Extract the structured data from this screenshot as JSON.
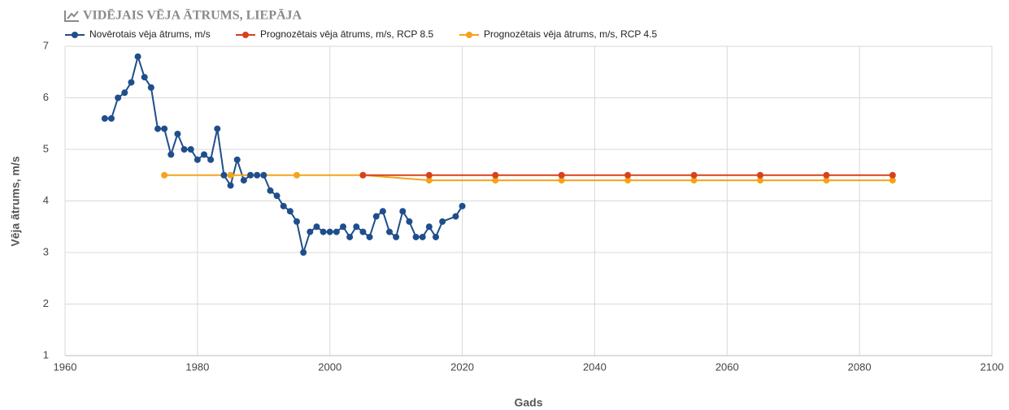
{
  "chart_data": {
    "type": "line",
    "title": "VIDĒJAIS VĒJA ĀTRUMS, LIEPĀJA",
    "xlabel": "Gads",
    "ylabel": "Vēja ātrums, m/s",
    "xlim": [
      1960,
      2100
    ],
    "xticks": [
      1960,
      1980,
      2000,
      2020,
      2040,
      2060,
      2080,
      2100
    ],
    "ylim": [
      1,
      7
    ],
    "yticks": [
      1,
      2,
      3,
      4,
      5,
      6,
      7
    ],
    "grid": true,
    "legend": "top",
    "series": [
      {
        "name": "Novērotais vēja ātrums, m/s",
        "color": "#1f4e8c",
        "x": [
          1966,
          1967,
          1968,
          1969,
          1970,
          1971,
          1972,
          1973,
          1974,
          1975,
          1976,
          1977,
          1978,
          1979,
          1980,
          1981,
          1982,
          1983,
          1984,
          1985,
          1986,
          1987,
          1988,
          1989,
          1990,
          1991,
          1992,
          1993,
          1994,
          1995,
          1996,
          1997,
          1998,
          1999,
          2000,
          2001,
          2002,
          2003,
          2004,
          2005,
          2006,
          2007,
          2008,
          2009,
          2010,
          2011,
          2012,
          2013,
          2014,
          2015,
          2016,
          2017,
          2019,
          2020
        ],
        "values": [
          5.6,
          5.6,
          6.0,
          6.1,
          6.3,
          6.8,
          6.4,
          6.2,
          5.4,
          5.4,
          4.9,
          5.3,
          5.0,
          5.0,
          4.8,
          4.9,
          4.8,
          5.4,
          4.5,
          4.3,
          4.8,
          4.4,
          4.5,
          4.5,
          4.5,
          4.2,
          4.1,
          3.9,
          3.8,
          3.6,
          3.0,
          3.4,
          3.5,
          3.4,
          3.4,
          3.4,
          3.5,
          3.3,
          3.5,
          3.4,
          3.3,
          3.7,
          3.8,
          3.4,
          3.3,
          3.8,
          3.6,
          3.3,
          3.3,
          3.5,
          3.3,
          3.6,
          3.7,
          3.9
        ]
      },
      {
        "name": "Prognozētais vēja ātrums, m/s, RCP 8.5",
        "color": "#d9411e",
        "x": [
          2005,
          2015,
          2025,
          2035,
          2045,
          2055,
          2065,
          2075,
          2085
        ],
        "values": [
          4.5,
          4.5,
          4.5,
          4.5,
          4.5,
          4.5,
          4.5,
          4.5,
          4.5
        ]
      },
      {
        "name": "Prognozētais vēja ātrums, m/s, RCP 4.5",
        "color": "#f5a31a",
        "x": [
          1975,
          1985,
          1995,
          2005,
          2015,
          2025,
          2035,
          2045,
          2055,
          2065,
          2075,
          2085
        ],
        "values": [
          4.5,
          4.5,
          4.5,
          4.5,
          4.4,
          4.4,
          4.4,
          4.4,
          4.4,
          4.4,
          4.4,
          4.4
        ]
      }
    ]
  }
}
